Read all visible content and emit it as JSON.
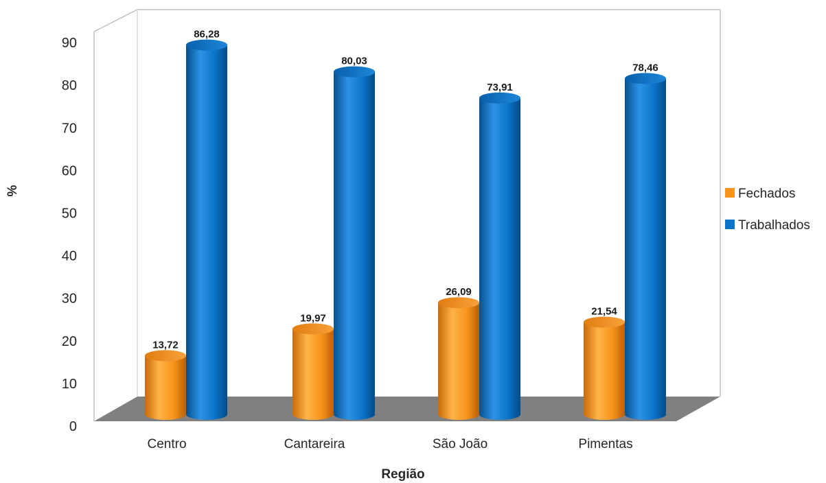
{
  "chart_data": {
    "type": "bar",
    "title": "",
    "xlabel": "Região",
    "ylabel": "%",
    "ylim": [
      0,
      90
    ],
    "yticks": [
      0,
      10,
      20,
      30,
      40,
      50,
      60,
      70,
      80,
      90
    ],
    "categories": [
      "Centro",
      "Cantareira",
      "São João",
      "Pimentas"
    ],
    "series": [
      {
        "name": "Fechados",
        "values": [
          13.72,
          19.97,
          26.09,
          21.54
        ],
        "labels": [
          "13,72",
          "19,97",
          "26,09",
          "21,54"
        ],
        "color": "#F7941D"
      },
      {
        "name": "Trabalhados",
        "values": [
          86.28,
          80.03,
          73.91,
          78.46
        ],
        "labels": [
          "86,28",
          "80,03",
          "73,91",
          "78,46"
        ],
        "color": "#0B74C9"
      }
    ],
    "style": "3d-cylinder",
    "grid": false,
    "legend_position": "right"
  }
}
